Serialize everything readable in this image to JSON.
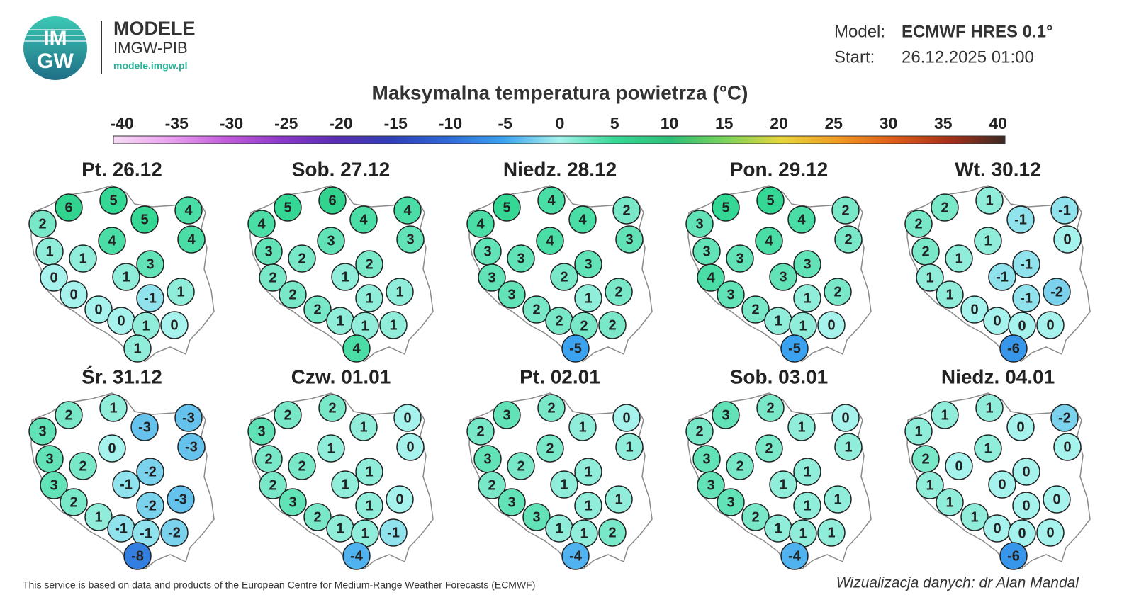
{
  "header": {
    "logo": [
      "IM",
      "GW"
    ],
    "brand": "MODELE",
    "org": "IMGW-PIB",
    "url": "modele.imgw.pl",
    "model_label": "Model:",
    "model": "ECMWF HRES 0.1°",
    "start_label": "Start:",
    "start": "26.12.2025 01:00"
  },
  "title": "Maksymalna temperatura powietrza (°C)",
  "colorbar": {
    "ticks": [
      -40,
      -35,
      -30,
      -25,
      -20,
      -15,
      -10,
      -5,
      0,
      5,
      10,
      15,
      20,
      25,
      30,
      35,
      40
    ],
    "colors": [
      "#f8dcf6",
      "#eaa2ef",
      "#c25cda",
      "#8c39c9",
      "#5a2db2",
      "#2f3fba",
      "#2f68d8",
      "#3aa2ee",
      "#a6f2ec",
      "#34d894",
      "#2cbf78",
      "#7cd35a",
      "#e8d63a",
      "#f09a20",
      "#e05a18",
      "#a8301a",
      "#3a2a24"
    ]
  },
  "panels": [
    {
      "title": "Pt. 26.12",
      "values": [
        2,
        6,
        5,
        4,
        5,
        4,
        4,
        1,
        1,
        3,
        1,
        0,
        1,
        -1,
        0,
        0,
        0,
        1,
        0,
        1
      ]
    },
    {
      "title": "Sob. 27.12",
      "values": [
        4,
        5,
        6,
        4,
        4,
        3,
        3,
        3,
        2,
        2,
        1,
        2,
        1,
        1,
        2,
        2,
        1,
        1,
        1,
        4
      ]
    },
    {
      "title": "Niedz. 28.12",
      "values": [
        4,
        5,
        4,
        2,
        4,
        3,
        4,
        3,
        3,
        3,
        2,
        3,
        2,
        1,
        3,
        2,
        2,
        2,
        2,
        -5
      ]
    },
    {
      "title": "Pon. 29.12",
      "values": [
        3,
        5,
        5,
        2,
        4,
        2,
        4,
        3,
        3,
        3,
        3,
        4,
        2,
        1,
        3,
        2,
        1,
        1,
        0,
        -5
      ]
    },
    {
      "title": "Wt. 30.12",
      "values": [
        2,
        2,
        1,
        -1,
        -1,
        0,
        1,
        2,
        1,
        -1,
        -1,
        1,
        -2,
        -1,
        1,
        0,
        0,
        0,
        0,
        -6
      ]
    },
    {
      "title": "Śr. 31.12",
      "values": [
        3,
        2,
        1,
        -3,
        -3,
        -3,
        0,
        3,
        2,
        -2,
        -1,
        3,
        -3,
        -2,
        2,
        1,
        -1,
        -1,
        -2,
        -8
      ]
    },
    {
      "title": "Czw. 01.01",
      "values": [
        3,
        2,
        2,
        0,
        1,
        0,
        1,
        2,
        2,
        1,
        1,
        2,
        0,
        1,
        3,
        2,
        1,
        1,
        -1,
        -4
      ]
    },
    {
      "title": "Pt. 02.01",
      "values": [
        2,
        3,
        2,
        0,
        1,
        1,
        2,
        3,
        2,
        1,
        1,
        2,
        1,
        1,
        3,
        3,
        1,
        1,
        2,
        -4
      ]
    },
    {
      "title": "Sob. 03.01",
      "values": [
        2,
        3,
        2,
        0,
        1,
        1,
        2,
        3,
        2,
        1,
        1,
        3,
        1,
        1,
        3,
        2,
        1,
        1,
        1,
        -4
      ]
    },
    {
      "title": "Niedz. 04.01",
      "values": [
        1,
        1,
        1,
        -2,
        0,
        0,
        1,
        2,
        0,
        0,
        0,
        1,
        0,
        0,
        1,
        1,
        0,
        0,
        0,
        -6
      ]
    }
  ],
  "footer": {
    "source": "This service is based on data and products of the European Centre for Medium-Range Weather Forecasts (ECMWF)",
    "credit": "Wizualizacja danych: dr Alan Mandal"
  }
}
